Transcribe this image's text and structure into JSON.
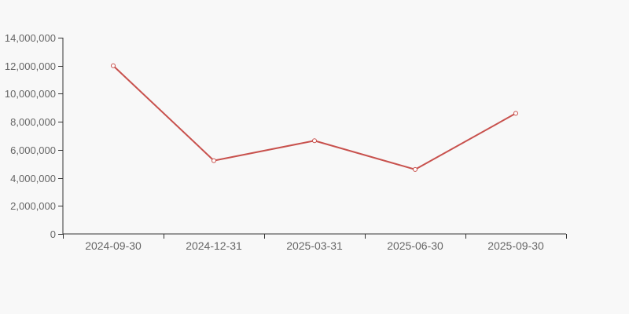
{
  "chart_data": {
    "type": "line",
    "title": "",
    "categories": [
      "2024-09-30",
      "2024-12-31",
      "2025-03-31",
      "2025-06-30",
      "2025-09-30"
    ],
    "series": [
      {
        "name": "value",
        "values": [
          12000000,
          5230000,
          6650000,
          4600000,
          8600000
        ]
      }
    ],
    "xlabel": "",
    "ylabel": "",
    "ylim": [
      0,
      14000000
    ],
    "y_tick_step": 2000000,
    "y_tick_labels": [
      "0",
      "2,000,000",
      "4,000,000",
      "6,000,000",
      "8,000,000",
      "10,000,000",
      "12,000,000",
      "14,000,000"
    ],
    "grid": false,
    "legend_position": "none",
    "marker": "open-circle",
    "colors": {
      "background": "#f8f8f8",
      "line": "#c8514d",
      "marker_fill": "#ffffff",
      "axis": "#333333",
      "tick_label": "#666666"
    }
  }
}
